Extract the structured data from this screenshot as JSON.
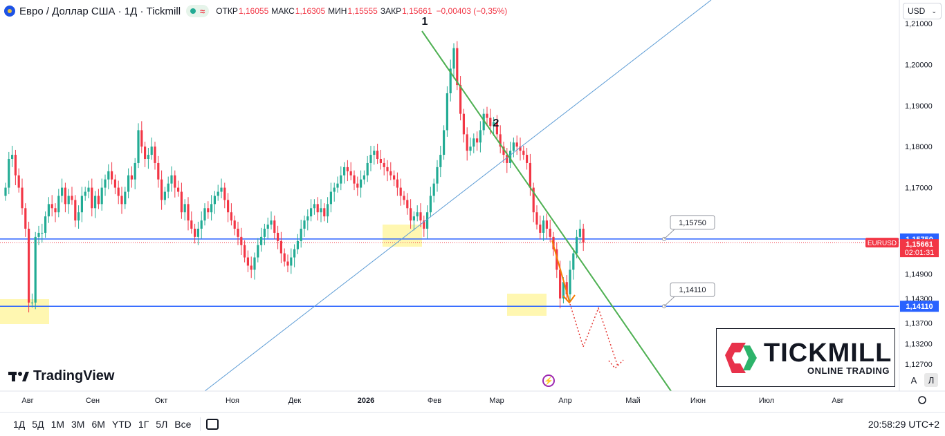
{
  "header": {
    "symbol": "Евро / Доллар США · 1Д · Tickmill",
    "open_label": "ОТКР",
    "open": "1,16055",
    "high_label": "МАКС",
    "high": "1,16305",
    "low_label": "МИН",
    "low": "1,15555",
    "close_label": "ЗАКР",
    "close": "1,15661",
    "change": "−0,00403 (−0,35%)"
  },
  "currency": "USD",
  "timeframes": [
    "1Д",
    "5Д",
    "1М",
    "3М",
    "6М",
    "YTD",
    "1Г",
    "5Л",
    "Все"
  ],
  "clock": "20:58:29 UTC+2",
  "tradingview_label": "TradingView",
  "brand": {
    "name": "TICKMILL",
    "tagline": "ONLINE TRADING"
  },
  "axis_buttons": {
    "auto": "A",
    "log": "Л"
  },
  "colors": {
    "up": "#22ab94",
    "down": "#f23645",
    "level": "#2962ff",
    "trend_green": "#4caf50",
    "trend_blue": "#5b9bd5",
    "arrow": "#f57c00",
    "zone": "#fff59d"
  },
  "chart_data": {
    "type": "candlestick",
    "symbol_ticker": "EURUSD",
    "x_tick_labels": [
      "Авг",
      "Сен",
      "Окт",
      "Ноя",
      "Дек",
      "2026",
      "Фев",
      "Мар",
      "Апр",
      "Май",
      "Июн",
      "Июл",
      "Авг"
    ],
    "y_tick_labels": [
      "1,21000",
      "1,20000",
      "1,19000",
      "1,18000",
      "1,17000",
      "1,14900",
      "1,14300",
      "1,13700",
      "1,13200",
      "1,12700"
    ],
    "ylim": [
      1.124,
      1.215
    ],
    "last_price": "1,15661",
    "countdown": "02:01:31",
    "levels": [
      {
        "value": 1.1575,
        "label": "1,15750"
      },
      {
        "value": 1.1411,
        "label": "1,14110"
      }
    ],
    "wave_labels": [
      "1",
      "2"
    ],
    "closes": [
      1.17,
      1.177,
      1.178,
      1.173,
      1.17,
      1.165,
      1.16,
      1.142,
      1.142,
      1.158,
      1.159,
      1.159,
      1.163,
      1.166,
      1.165,
      1.164,
      1.168,
      1.17,
      1.166,
      1.168,
      1.167,
      1.162,
      1.164,
      1.168,
      1.169,
      1.17,
      1.165,
      1.168,
      1.166,
      1.17,
      1.172,
      1.174,
      1.172,
      1.17,
      1.168,
      1.166,
      1.169,
      1.173,
      1.172,
      1.176,
      1.184,
      1.18,
      1.177,
      1.178,
      1.18,
      1.176,
      1.172,
      1.167,
      1.169,
      1.171,
      1.173,
      1.17,
      1.169,
      1.164,
      1.166,
      1.162,
      1.16,
      1.158,
      1.16,
      1.162,
      1.165,
      1.164,
      1.166,
      1.168,
      1.169,
      1.17,
      1.167,
      1.164,
      1.162,
      1.16,
      1.158,
      1.156,
      1.153,
      1.151,
      1.15,
      1.153,
      1.156,
      1.158,
      1.16,
      1.161,
      1.162,
      1.159,
      1.157,
      1.154,
      1.152,
      1.151,
      1.153,
      1.155,
      1.157,
      1.16,
      1.162,
      1.163,
      1.165,
      1.166,
      1.164,
      1.165,
      1.163,
      1.166,
      1.169,
      1.17,
      1.171,
      1.173,
      1.175,
      1.174,
      1.173,
      1.171,
      1.17,
      1.172,
      1.173,
      1.176,
      1.178,
      1.179,
      1.177,
      1.176,
      1.175,
      1.174,
      1.173,
      1.172,
      1.17,
      1.168,
      1.167,
      1.165,
      1.162,
      1.163,
      1.164,
      1.162,
      1.16,
      1.164,
      1.168,
      1.171,
      1.175,
      1.178,
      1.184,
      1.193,
      1.199,
      1.204,
      1.195,
      1.188,
      1.183,
      1.179,
      1.18,
      1.182,
      1.181,
      1.184,
      1.188,
      1.187,
      1.185,
      1.186,
      1.183,
      1.18,
      1.178,
      1.176,
      1.179,
      1.181,
      1.18,
      1.179,
      1.178,
      1.176,
      1.17,
      1.164,
      1.161,
      1.159,
      1.162,
      1.16,
      1.158,
      1.155,
      1.15,
      1.143,
      1.147,
      1.144,
      1.15,
      1.154,
      1.158,
      1.16,
      1.1566
    ]
  }
}
